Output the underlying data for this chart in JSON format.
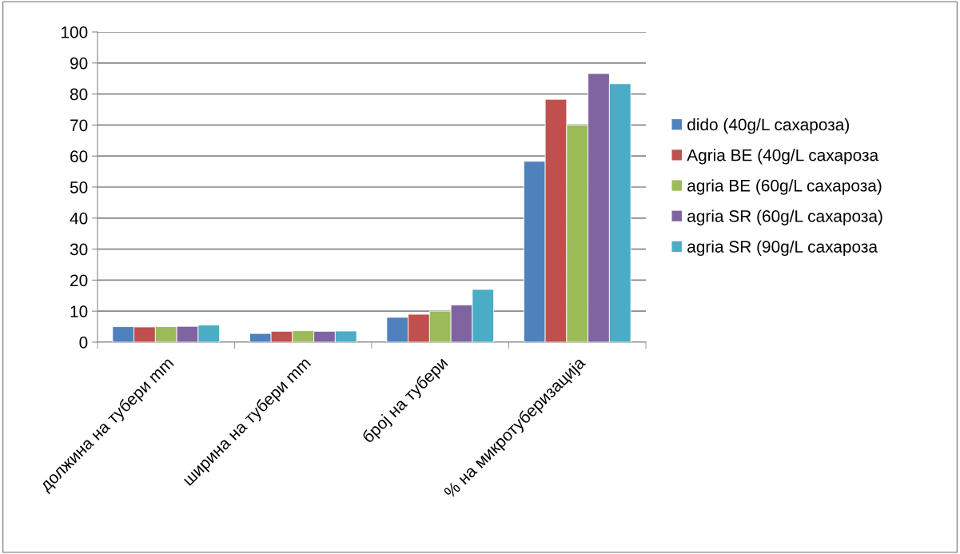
{
  "chart_data": {
    "type": "bar",
    "categories": [
      "должина на тубери mm",
      "ширина на тубери mm",
      "број на тубери",
      "% на микротуберизација"
    ],
    "series": [
      {
        "name": "dido (40g/L сахароза)",
        "color": "#4f81bd",
        "values": [
          5,
          2.8,
          8,
          58.3
        ]
      },
      {
        "name": "Agria BE (40g/L сахароза",
        "color": "#c0504d",
        "values": [
          4.9,
          3.5,
          9,
          78.3
        ]
      },
      {
        "name": "agria BE (60g/L сахароза)",
        "color": "#9bbb59",
        "values": [
          5,
          3.7,
          10,
          70
        ]
      },
      {
        "name": "agria SR (60g/L сахароза)",
        "color": "#8064a2",
        "values": [
          5.1,
          3.5,
          12,
          86.6
        ]
      },
      {
        "name": "agria SR (90g/L сахароза",
        "color": "#4bacc6",
        "values": [
          5.5,
          3.6,
          17,
          83.3
        ]
      }
    ],
    "ylim": [
      0,
      100
    ],
    "yticks": [
      0,
      10,
      20,
      30,
      40,
      50,
      60,
      70,
      80,
      90,
      100
    ],
    "grid": "y",
    "legend": "right"
  }
}
